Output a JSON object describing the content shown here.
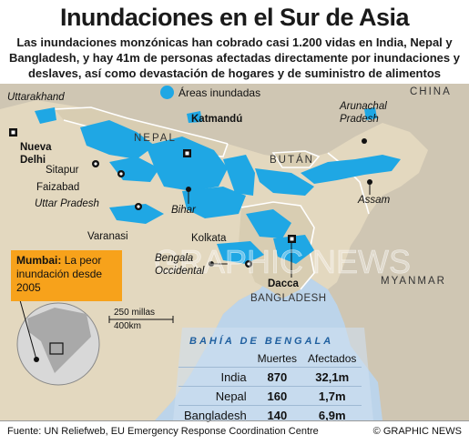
{
  "title": "Inundaciones en el Sur de Asia",
  "subtitle": "Las inundaciones monzónicas han cobrado casi 1.200 vidas en India, Nepal y Bangladesh, y hay 41m de personas afectadas directamente por inundaciones y deslaves, así como devastación de hogares y de suministro de alimentos",
  "legend": {
    "label": "Áreas inundadas",
    "color": "#1fa7e4"
  },
  "countries": {
    "china": "CHINA",
    "nepal": "NEPAL",
    "bhutan": "BUTÁN",
    "myanmar": "MYANMAR",
    "bangladesh": "BANGLADESH"
  },
  "places": {
    "uttarakhand": "Uttarakhand",
    "nueva_delhi": "Nueva Delhi",
    "katmandu": "Katmandú",
    "arunachal": "Arunachal Pradesh",
    "sitapur": "Sitapur",
    "faizabad": "Faizabad",
    "uttar_pradesh": "Uttar Pradesh",
    "bihar": "Bihar",
    "assam": "Assam",
    "varanasi": "Varanasi",
    "kolkata": "Kolkata",
    "bengala_occidental": "Bengala Occidental",
    "dacca": "Dacca"
  },
  "mumbai_note": {
    "bold": "Mumbai:",
    "text": "La peor inundación desde 2005"
  },
  "scale": {
    "miles": "250 millas",
    "km": "400km"
  },
  "watermark": "GRAPHIC NEWS",
  "sea_label": "BAHÍA DE BENGALA",
  "table": {
    "headers": [
      "Muertes",
      "Afectados"
    ],
    "rows": [
      {
        "country": "India",
        "deaths": "870",
        "affected": "32,1m"
      },
      {
        "country": "Nepal",
        "deaths": "160",
        "affected": "1,7m"
      },
      {
        "country": "Bangladesh",
        "deaths": "140",
        "affected": "6,9m"
      }
    ]
  },
  "source": "Fuente: UN Reliefweb, EU Emergency Response Coordination Centre",
  "credit": "© GRAPHIC NEWS",
  "colors": {
    "land_india": "#e3d8bf",
    "land_other": "#cfc6b3",
    "sea": "#bcd4ea",
    "flood": "#1fa7e4",
    "border": "#ffffff",
    "mumbai_box": "#f7a21b"
  }
}
